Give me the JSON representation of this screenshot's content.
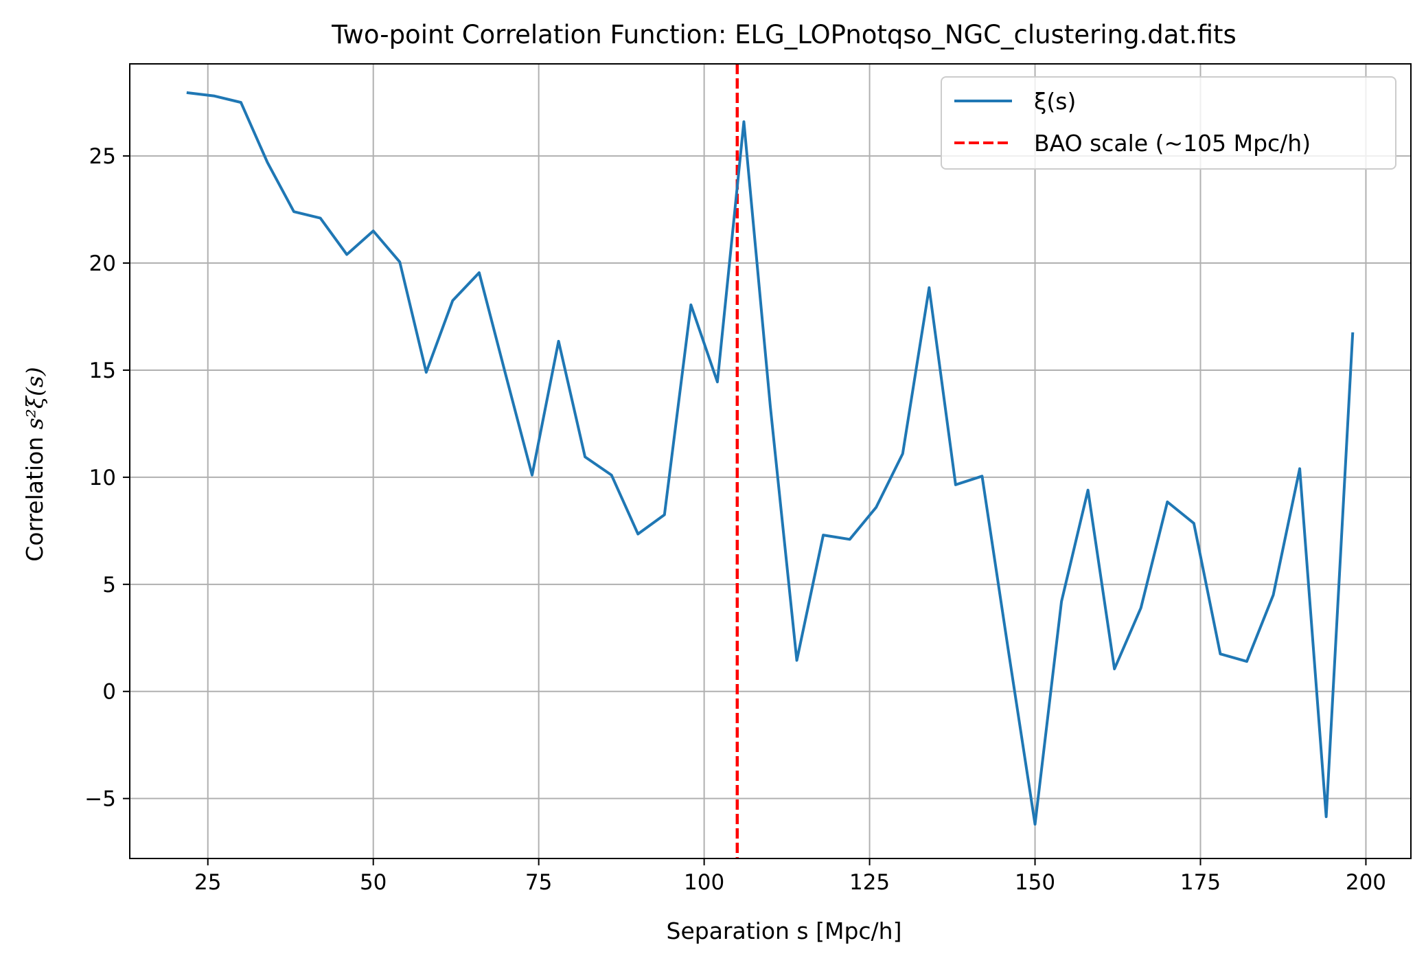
{
  "chart_data": {
    "type": "line",
    "title": "Two-point Correlation Function: ELG_LOPnotqso_NGC_clustering.dat.fits",
    "xlabel": "Separation s [Mpc/h]",
    "ylabel_prefix": "Correlation ",
    "ylabel_math": "s²ξ(s)",
    "xlim": [
      13.2,
      206.8
    ],
    "ylim": [
      -7.8,
      29.3
    ],
    "x_ticks": [
      25,
      50,
      75,
      100,
      125,
      150,
      175,
      200
    ],
    "x_tick_labels": [
      "25",
      "50",
      "75",
      "100",
      "125",
      "150",
      "175",
      "200"
    ],
    "y_ticks": [
      -5,
      0,
      5,
      10,
      15,
      20,
      25
    ],
    "y_tick_labels": [
      "−5",
      "0",
      "5",
      "10",
      "15",
      "20",
      "25"
    ],
    "grid": true,
    "legend_position": "top-right",
    "series": [
      {
        "name": "ξ(s)",
        "color": "#1f77b4",
        "style": "solid",
        "x": [
          22,
          26,
          30,
          34,
          38,
          42,
          46,
          50,
          54,
          58,
          62,
          66,
          70,
          74,
          78,
          82,
          86,
          90,
          94,
          98,
          102,
          106,
          110,
          114,
          118,
          122,
          126,
          130,
          134,
          138,
          142,
          146,
          150,
          154,
          158,
          162,
          166,
          170,
          174,
          178,
          182,
          186,
          190,
          194,
          198
        ],
        "y": [
          27.95,
          27.8,
          27.5,
          24.7,
          22.4,
          22.1,
          20.4,
          21.5,
          20.05,
          14.9,
          18.25,
          19.55,
          14.8,
          10.1,
          16.35,
          10.95,
          10.1,
          7.35,
          8.25,
          18.05,
          14.45,
          26.6,
          13.3,
          1.45,
          7.3,
          7.1,
          8.6,
          11.1,
          18.85,
          9.65,
          10.05,
          1.85,
          -6.2,
          4.2,
          9.4,
          1.05,
          3.9,
          8.85,
          7.85,
          1.75,
          1.4,
          4.5,
          10.4,
          -5.85,
          16.7
        ]
      }
    ],
    "reference_lines": [
      {
        "name": "BAO scale (~105 Mpc/h)",
        "x": 105,
        "color": "#ff0000",
        "style": "dashed"
      }
    ]
  }
}
